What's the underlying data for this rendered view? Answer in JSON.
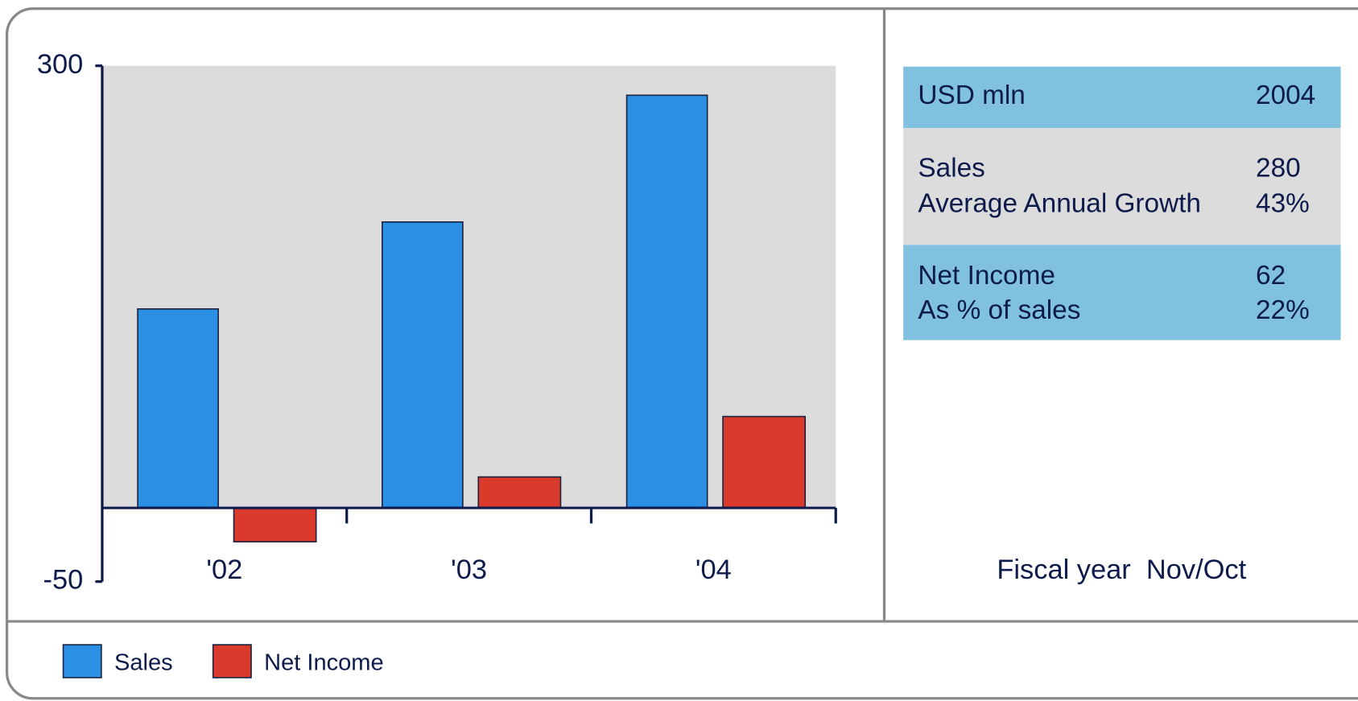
{
  "chart_data": {
    "type": "bar",
    "categories": [
      "'02",
      "'03",
      "'04"
    ],
    "series": [
      {
        "name": "Sales",
        "color": "#2b8fe3",
        "values": [
          135,
          194,
          280
        ]
      },
      {
        "name": "Net Income",
        "color": "#d93a2b",
        "values": [
          -23,
          21,
          62
        ]
      }
    ],
    "ylim": [
      -50,
      300
    ],
    "yticks": [
      -50,
      300
    ]
  },
  "table": {
    "header": [
      "USD mln",
      "2004"
    ],
    "groups": [
      [
        [
          "Sales",
          "280"
        ],
        [
          "Average Annual Growth",
          "43%"
        ]
      ],
      [
        [
          "Net Income",
          "62"
        ],
        [
          "As % of sales",
          "22%"
        ]
      ]
    ]
  },
  "footnote": "Fiscal year  Nov/Oct"
}
